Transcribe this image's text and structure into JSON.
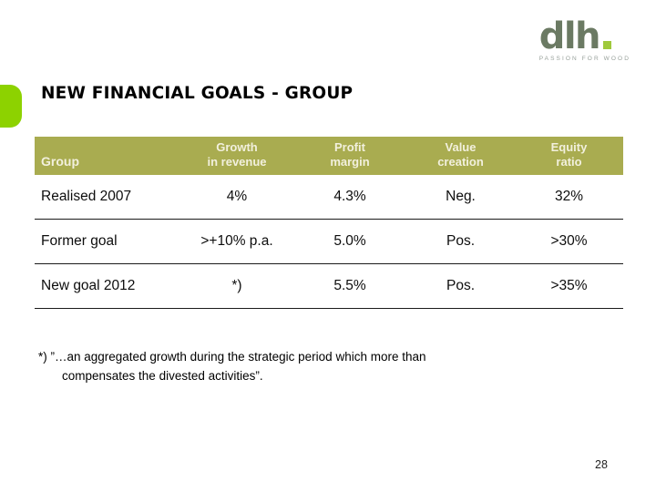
{
  "slide": {
    "title": "NEW FINANCIAL GOALS - GROUP",
    "page_number": "28"
  },
  "logo": {
    "wordmark": "dlh",
    "tagline": "PASSION FOR WOOD"
  },
  "table": {
    "columns": [
      {
        "label": "Group"
      },
      {
        "line1": "Growth",
        "line2": "in revenue"
      },
      {
        "line1": "Profit",
        "line2": "margin"
      },
      {
        "line1": "Value",
        "line2": "creation"
      },
      {
        "line1": "Equity",
        "line2": "ratio"
      }
    ],
    "rows": [
      {
        "group": "Realised 2007",
        "growth_in_revenue": "4%",
        "profit_margin": "4.3%",
        "value_creation": "Neg.",
        "equity_ratio": "32%"
      },
      {
        "group": "Former goal",
        "growth_in_revenue": ">+10% p.a.",
        "profit_margin": "5.0%",
        "value_creation": "Pos.",
        "equity_ratio": ">30%"
      },
      {
        "group": "New goal 2012",
        "growth_in_revenue": "*)",
        "profit_margin": "5.5%",
        "value_creation": "Pos.",
        "equity_ratio": ">35%"
      }
    ]
  },
  "footnote": {
    "line1": "*) ”…an aggregated growth during the strategic period which more than",
    "line2": "compensates the divested activities”."
  },
  "colors": {
    "header-bg": "#a9ac50",
    "header-text": "#f2f0dd",
    "accent-green": "#8dd200",
    "logo-green": "#6b7a63",
    "logo-dot-green": "#9fc93c",
    "tagline-gray": "#98a19b",
    "row-line": "#1a1a1a"
  }
}
